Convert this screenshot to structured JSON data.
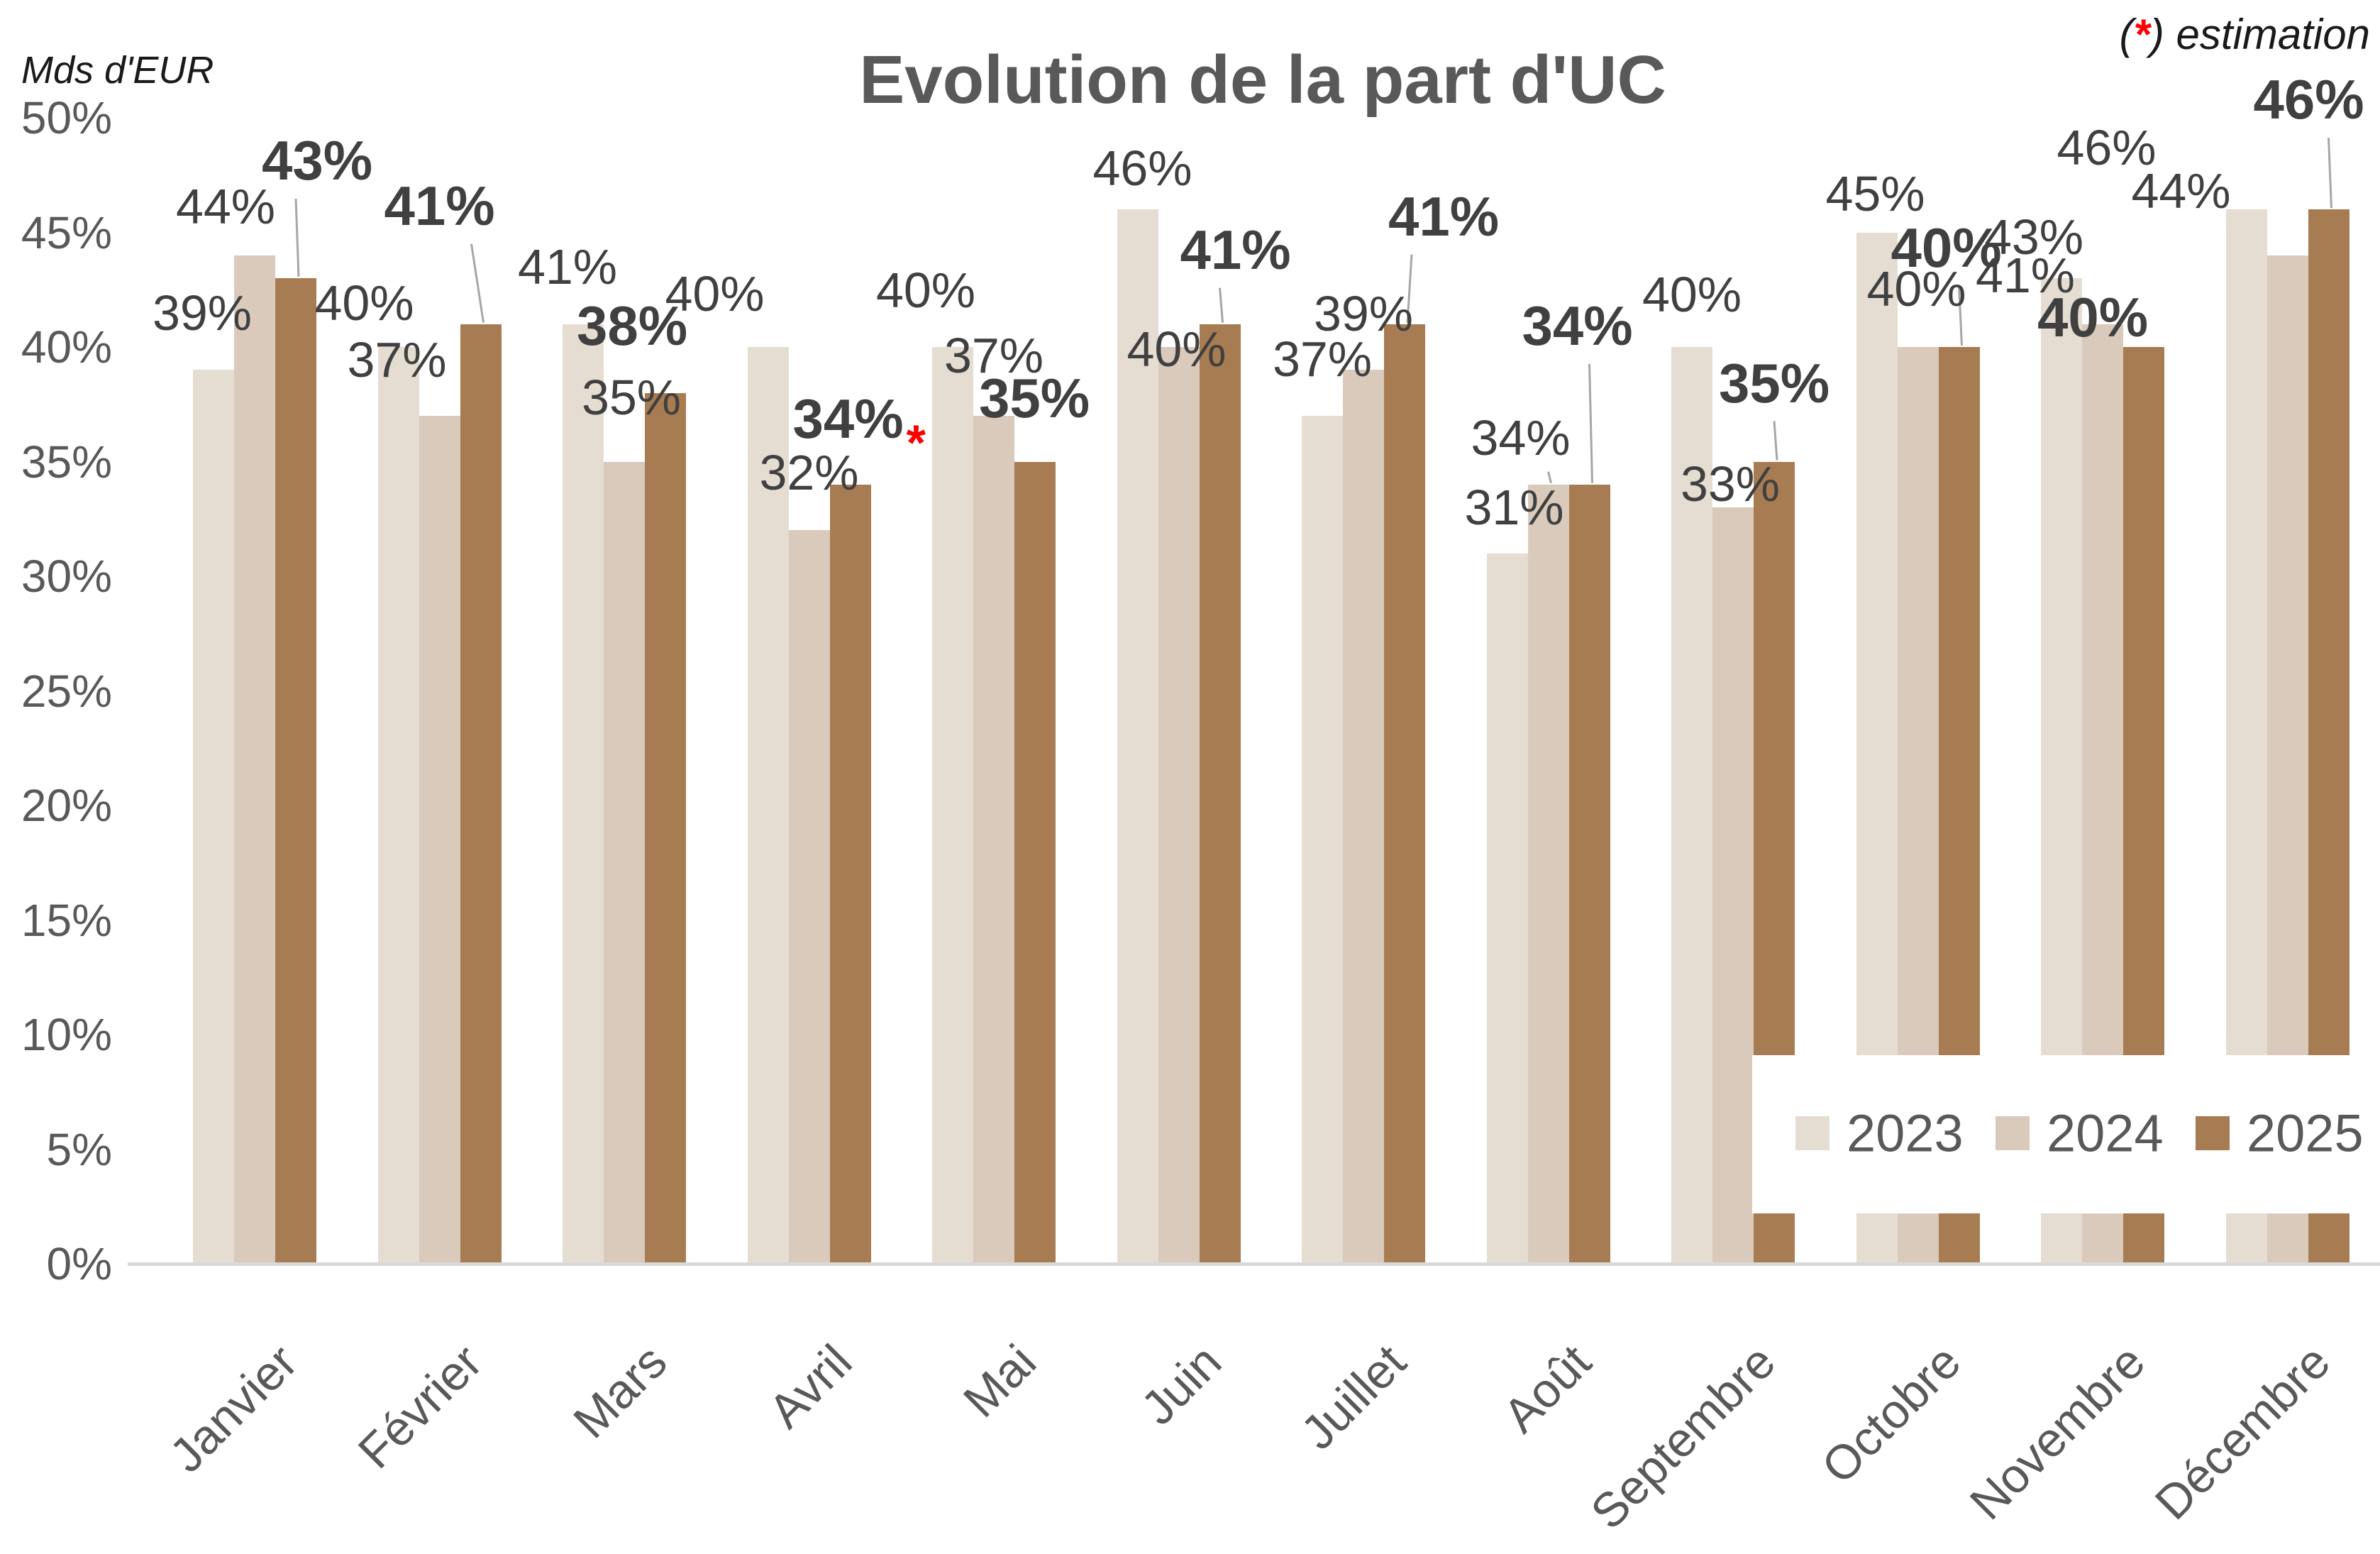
{
  "title": "Evolution de la part d'UC",
  "unit_label": "Mds d'EUR",
  "estimation_note": {
    "pre": "(",
    "star": "*",
    "post": ") estimation"
  },
  "colors": {
    "bar_2023": "#e5ddd2",
    "bar_2024": "#d9cabc",
    "bar_2025": "#a87c52",
    "data_label": "#404040",
    "axis_text": "#595959",
    "title_text": "#595959",
    "leader_line": "#a6a6a6",
    "axis_line": "#d9d9d9",
    "estimation_red": "#ff0000",
    "background": "#ffffff"
  },
  "chart_data": {
    "type": "bar",
    "title": "Evolution de la part d'UC",
    "xlabel": "",
    "ylabel": "Mds d'EUR",
    "categories": [
      "Janvier",
      "Février",
      "Mars",
      "Avril",
      "Mai",
      "Juin",
      "Juillet",
      "Août",
      "Septembre",
      "Octobre",
      "Novembre",
      "Décembre"
    ],
    "series": [
      {
        "name": "2023",
        "color": "#e5ddd2",
        "values": [
          39,
          40,
          41,
          40,
          40,
          46,
          37,
          31,
          40,
          45,
          43,
          46
        ]
      },
      {
        "name": "2024",
        "color": "#d9cabc",
        "values": [
          44,
          37,
          35,
          32,
          37,
          40,
          39,
          34,
          33,
          40,
          41,
          44
        ]
      },
      {
        "name": "2025",
        "color": "#a87c52",
        "values": [
          43,
          41,
          38,
          34,
          35,
          41,
          41,
          34,
          35,
          40,
          40,
          46
        ]
      }
    ],
    "label_suffix": "%",
    "y_axis": {
      "min": 0,
      "max": 50,
      "tick_step": 5,
      "grid": false,
      "ticks": [
        "0%",
        "5%",
        "10%",
        "15%",
        "20%",
        "25%",
        "30%",
        "35%",
        "40%",
        "45%",
        "50%"
      ]
    },
    "legend": {
      "position": "bottom-right",
      "items": [
        "2023",
        "2024",
        "2025"
      ]
    },
    "annotations": {
      "estimated_point": {
        "category": "Avril",
        "series": "2025",
        "marker": "*",
        "marker_color": "#ff0000"
      },
      "note": "(*) estimation"
    }
  }
}
